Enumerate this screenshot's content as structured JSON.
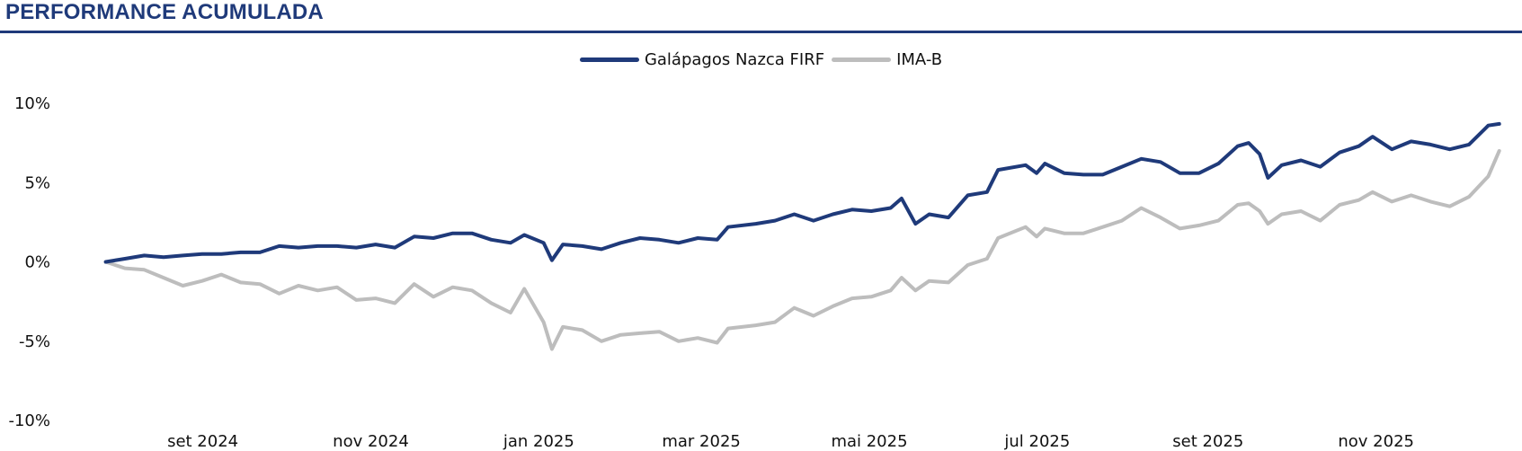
{
  "header": {
    "title": "PERFORMANCE ACUMULADA"
  },
  "colors": {
    "title": "#1f3a7a",
    "fund": "#1f3a7a",
    "benchmark": "#bdbdbd"
  },
  "chart_data": {
    "type": "line",
    "xlim": [
      "2024-07-22",
      "2025-12-23"
    ],
    "ylim": [
      -10,
      10
    ],
    "yticks": [
      10,
      5,
      0,
      -5,
      -10
    ],
    "ytick_labels": [
      "10%",
      "5%",
      "0%",
      "-5%",
      "-10%"
    ],
    "xticks": [
      "2024-09-01",
      "2024-11-01",
      "2025-01-01",
      "2025-03-01",
      "2025-05-01",
      "2025-07-01",
      "2025-09-01",
      "2025-11-01"
    ],
    "xtick_labels": [
      "set 2024",
      "nov 2024",
      "jan 2025",
      "mar 2025",
      "mai 2025",
      "jul 2025",
      "set 2025",
      "nov 2025"
    ],
    "legend_position": "top-center",
    "grid": false,
    "series": [
      {
        "name": "Galápagos Nazca FIRF",
        "color": "#1f3a7a",
        "points": [
          [
            "2024-07-31",
            0.0
          ],
          [
            "2024-08-07",
            0.2
          ],
          [
            "2024-08-14",
            0.4
          ],
          [
            "2024-08-21",
            0.3
          ],
          [
            "2024-08-28",
            0.4
          ],
          [
            "2024-09-04",
            0.5
          ],
          [
            "2024-09-11",
            0.5
          ],
          [
            "2024-09-18",
            0.6
          ],
          [
            "2024-09-25",
            0.6
          ],
          [
            "2024-10-02",
            1.0
          ],
          [
            "2024-10-09",
            0.9
          ],
          [
            "2024-10-16",
            1.0
          ],
          [
            "2024-10-23",
            1.0
          ],
          [
            "2024-10-30",
            0.9
          ],
          [
            "2024-11-06",
            1.1
          ],
          [
            "2024-11-13",
            0.9
          ],
          [
            "2024-11-20",
            1.6
          ],
          [
            "2024-11-27",
            1.5
          ],
          [
            "2024-12-04",
            1.8
          ],
          [
            "2024-12-11",
            1.8
          ],
          [
            "2024-12-18",
            1.4
          ],
          [
            "2024-12-25",
            1.2
          ],
          [
            "2024-12-30",
            1.7
          ],
          [
            "2025-01-06",
            1.2
          ],
          [
            "2025-01-09",
            0.1
          ],
          [
            "2025-01-13",
            1.1
          ],
          [
            "2025-01-20",
            1.0
          ],
          [
            "2025-01-27",
            0.8
          ],
          [
            "2025-02-03",
            1.2
          ],
          [
            "2025-02-10",
            1.5
          ],
          [
            "2025-02-17",
            1.4
          ],
          [
            "2025-02-24",
            1.2
          ],
          [
            "2025-03-03",
            1.5
          ],
          [
            "2025-03-10",
            1.4
          ],
          [
            "2025-03-14",
            2.2
          ],
          [
            "2025-03-24",
            2.4
          ],
          [
            "2025-03-31",
            2.6
          ],
          [
            "2025-04-07",
            3.0
          ],
          [
            "2025-04-14",
            2.6
          ],
          [
            "2025-04-21",
            3.0
          ],
          [
            "2025-04-28",
            3.3
          ],
          [
            "2025-05-05",
            3.2
          ],
          [
            "2025-05-12",
            3.4
          ],
          [
            "2025-05-16",
            4.0
          ],
          [
            "2025-05-21",
            2.4
          ],
          [
            "2025-05-26",
            3.0
          ],
          [
            "2025-06-02",
            2.8
          ],
          [
            "2025-06-09",
            4.2
          ],
          [
            "2025-06-16",
            4.4
          ],
          [
            "2025-06-20",
            5.8
          ],
          [
            "2025-06-30",
            6.1
          ],
          [
            "2025-07-04",
            5.6
          ],
          [
            "2025-07-07",
            6.2
          ],
          [
            "2025-07-14",
            5.6
          ],
          [
            "2025-07-21",
            5.5
          ],
          [
            "2025-07-28",
            5.5
          ],
          [
            "2025-08-04",
            6.0
          ],
          [
            "2025-08-11",
            6.5
          ],
          [
            "2025-08-18",
            6.3
          ],
          [
            "2025-08-25",
            5.6
          ],
          [
            "2025-09-01",
            5.6
          ],
          [
            "2025-09-08",
            6.2
          ],
          [
            "2025-09-15",
            7.3
          ],
          [
            "2025-09-19",
            7.5
          ],
          [
            "2025-09-23",
            6.8
          ],
          [
            "2025-09-26",
            5.3
          ],
          [
            "2025-10-01",
            6.1
          ],
          [
            "2025-10-08",
            6.4
          ],
          [
            "2025-10-15",
            6.0
          ],
          [
            "2025-10-22",
            6.9
          ],
          [
            "2025-10-29",
            7.3
          ],
          [
            "2025-11-03",
            7.9
          ],
          [
            "2025-11-10",
            7.1
          ],
          [
            "2025-11-17",
            7.6
          ],
          [
            "2025-11-24",
            7.4
          ],
          [
            "2025-12-01",
            7.1
          ],
          [
            "2025-12-08",
            7.4
          ],
          [
            "2025-12-15",
            8.6
          ],
          [
            "2025-12-19",
            8.7
          ]
        ]
      },
      {
        "name": "IMA-B",
        "color": "#bdbdbd",
        "points": [
          [
            "2024-07-31",
            0.0
          ],
          [
            "2024-08-07",
            -0.4
          ],
          [
            "2024-08-14",
            -0.5
          ],
          [
            "2024-08-21",
            -1.0
          ],
          [
            "2024-08-28",
            -1.5
          ],
          [
            "2024-09-04",
            -1.2
          ],
          [
            "2024-09-11",
            -0.8
          ],
          [
            "2024-09-18",
            -1.3
          ],
          [
            "2024-09-25",
            -1.4
          ],
          [
            "2024-10-02",
            -2.0
          ],
          [
            "2024-10-09",
            -1.5
          ],
          [
            "2024-10-16",
            -1.8
          ],
          [
            "2024-10-23",
            -1.6
          ],
          [
            "2024-10-30",
            -2.4
          ],
          [
            "2024-11-06",
            -2.3
          ],
          [
            "2024-11-13",
            -2.6
          ],
          [
            "2024-11-20",
            -1.4
          ],
          [
            "2024-11-27",
            -2.2
          ],
          [
            "2024-12-04",
            -1.6
          ],
          [
            "2024-12-11",
            -1.8
          ],
          [
            "2024-12-18",
            -2.6
          ],
          [
            "2024-12-25",
            -3.2
          ],
          [
            "2024-12-30",
            -1.7
          ],
          [
            "2025-01-06",
            -3.8
          ],
          [
            "2025-01-09",
            -5.5
          ],
          [
            "2025-01-13",
            -4.1
          ],
          [
            "2025-01-20",
            -4.3
          ],
          [
            "2025-01-27",
            -5.0
          ],
          [
            "2025-02-03",
            -4.6
          ],
          [
            "2025-02-10",
            -4.5
          ],
          [
            "2025-02-17",
            -4.4
          ],
          [
            "2025-02-24",
            -5.0
          ],
          [
            "2025-03-03",
            -4.8
          ],
          [
            "2025-03-10",
            -5.1
          ],
          [
            "2025-03-14",
            -4.2
          ],
          [
            "2025-03-24",
            -4.0
          ],
          [
            "2025-03-31",
            -3.8
          ],
          [
            "2025-04-07",
            -2.9
          ],
          [
            "2025-04-14",
            -3.4
          ],
          [
            "2025-04-21",
            -2.8
          ],
          [
            "2025-04-28",
            -2.3
          ],
          [
            "2025-05-05",
            -2.2
          ],
          [
            "2025-05-12",
            -1.8
          ],
          [
            "2025-05-16",
            -1.0
          ],
          [
            "2025-05-21",
            -1.8
          ],
          [
            "2025-05-26",
            -1.2
          ],
          [
            "2025-06-02",
            -1.3
          ],
          [
            "2025-06-09",
            -0.2
          ],
          [
            "2025-06-16",
            0.2
          ],
          [
            "2025-06-20",
            1.5
          ],
          [
            "2025-06-30",
            2.2
          ],
          [
            "2025-07-04",
            1.6
          ],
          [
            "2025-07-07",
            2.1
          ],
          [
            "2025-07-14",
            1.8
          ],
          [
            "2025-07-21",
            1.8
          ],
          [
            "2025-07-28",
            2.2
          ],
          [
            "2025-08-04",
            2.6
          ],
          [
            "2025-08-11",
            3.4
          ],
          [
            "2025-08-18",
            2.8
          ],
          [
            "2025-08-25",
            2.1
          ],
          [
            "2025-09-01",
            2.3
          ],
          [
            "2025-09-08",
            2.6
          ],
          [
            "2025-09-15",
            3.6
          ],
          [
            "2025-09-19",
            3.7
          ],
          [
            "2025-09-23",
            3.2
          ],
          [
            "2025-09-26",
            2.4
          ],
          [
            "2025-10-01",
            3.0
          ],
          [
            "2025-10-08",
            3.2
          ],
          [
            "2025-10-15",
            2.6
          ],
          [
            "2025-10-22",
            3.6
          ],
          [
            "2025-10-29",
            3.9
          ],
          [
            "2025-11-03",
            4.4
          ],
          [
            "2025-11-10",
            3.8
          ],
          [
            "2025-11-17",
            4.2
          ],
          [
            "2025-11-24",
            3.8
          ],
          [
            "2025-12-01",
            3.5
          ],
          [
            "2025-12-08",
            4.1
          ],
          [
            "2025-12-15",
            5.4
          ],
          [
            "2025-12-19",
            7.0
          ]
        ]
      }
    ]
  }
}
